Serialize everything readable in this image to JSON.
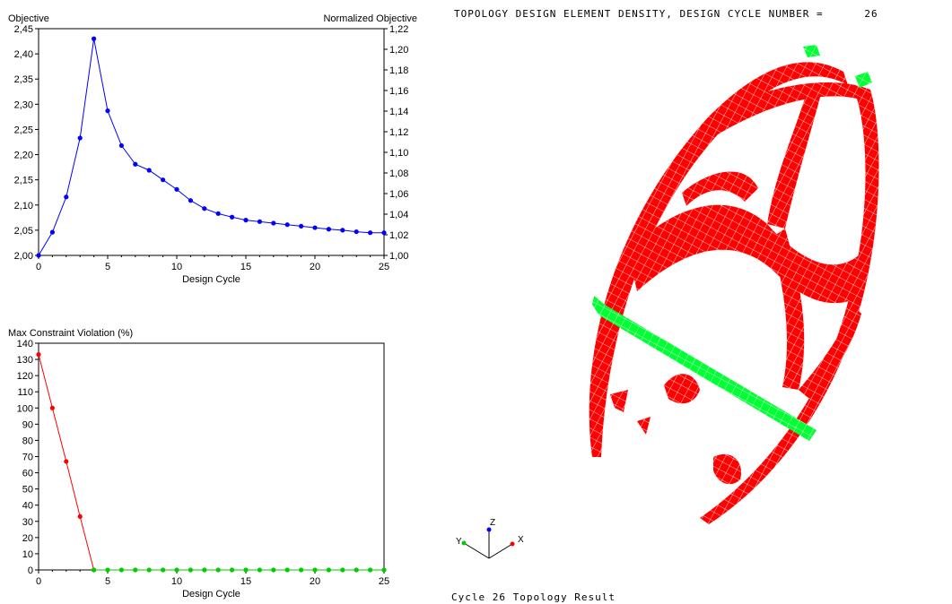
{
  "chart_data": [
    {
      "type": "line",
      "xlabel": "Design Cycle",
      "ylabel": "Objective",
      "y2label": "Normalized Objective",
      "xlim": [
        0,
        25
      ],
      "ylim": [
        2.0,
        2.45
      ],
      "y2lim": [
        1.0,
        1.22
      ],
      "xticks": [
        "0",
        "5",
        "10",
        "15",
        "20",
        "25"
      ],
      "yticks": [
        "2,00",
        "2,05",
        "2,10",
        "2,15",
        "2,20",
        "2,25",
        "2,30",
        "2,35",
        "2,40",
        "2,45"
      ],
      "y2ticks": [
        "1,00",
        "1,02",
        "1,04",
        "1,06",
        "1,08",
        "1,10",
        "1,12",
        "1,14",
        "1,16",
        "1,18",
        "1,20",
        "1,22"
      ],
      "grid": false,
      "series": [
        {
          "color": "#0000ff",
          "x": [
            0,
            1,
            2,
            3,
            4,
            5,
            6,
            7,
            8,
            9,
            10,
            11,
            12,
            13,
            14,
            15,
            16,
            17,
            18,
            19,
            20,
            21,
            22,
            23,
            24,
            25
          ],
          "values": [
            2.0,
            2.046,
            2.116,
            2.233,
            2.43,
            2.287,
            2.218,
            2.181,
            2.169,
            2.15,
            2.131,
            2.109,
            2.093,
            2.083,
            2.076,
            2.07,
            2.067,
            2.064,
            2.061,
            2.058,
            2.055,
            2.052,
            2.05,
            2.047,
            2.045,
            2.045
          ]
        }
      ]
    },
    {
      "type": "line",
      "xlabel": "Design Cycle",
      "ylabel": "Max Constraint Violation (%)",
      "xlim": [
        0,
        25
      ],
      "ylim": [
        0,
        140
      ],
      "xticks": [
        "0",
        "5",
        "10",
        "15",
        "20",
        "25"
      ],
      "yticks": [
        "0",
        "10",
        "20",
        "30",
        "40",
        "50",
        "60",
        "70",
        "80",
        "90",
        "100",
        "110",
        "120",
        "130",
        "140"
      ],
      "grid": false,
      "series": [
        {
          "color": "#ff0000",
          "x": [
            0,
            1,
            2,
            3,
            4
          ],
          "values": [
            133,
            100,
            67,
            33,
            0
          ]
        },
        {
          "color": "#00cc00",
          "x": [
            4,
            5,
            6,
            7,
            8,
            9,
            10,
            11,
            12,
            13,
            14,
            15,
            16,
            17,
            18,
            19,
            20,
            21,
            22,
            23,
            24,
            25
          ],
          "values": [
            0,
            0,
            0,
            0,
            0,
            0,
            0,
            0,
            0,
            0,
            0,
            0,
            0,
            0,
            0,
            0,
            0,
            0,
            0,
            0,
            0,
            0
          ]
        }
      ]
    }
  ],
  "topology": {
    "title": "TOPOLOGY DESIGN ELEMENT DENSITY, DESIGN CYCLE NUMBER =      26",
    "caption": "Cycle 26 Topology Result",
    "solid_color": "#ff0000",
    "mid_color": "#00ff33",
    "triad": {
      "x": "X",
      "y": "Y",
      "z": "Z"
    }
  }
}
